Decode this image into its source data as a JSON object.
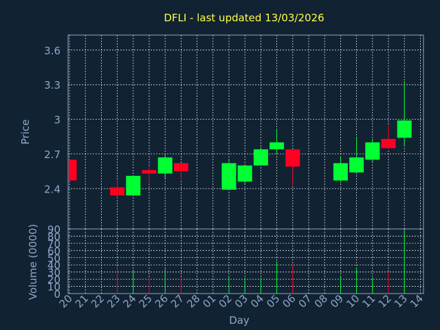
{
  "chart_data": {
    "type": "candlestick",
    "title": "DFLI - last updated 13/03/2026",
    "colors": {
      "background": "#112233",
      "up": "#00ff33",
      "down": "#ff0022",
      "title": "#ffff44",
      "axis": "#8fa8c8",
      "grid": "#ffffff"
    },
    "grid": true,
    "x_tick_labels": [
      "20",
      "21",
      "22",
      "23",
      "24",
      "25",
      "26",
      "27",
      "28",
      "01",
      "02",
      "03",
      "04",
      "05",
      "06",
      "07",
      "08",
      "09",
      "10",
      "11",
      "12",
      "13",
      "14"
    ],
    "xlabel": "Day",
    "price_panel": {
      "ylabel": "Price",
      "ylim": [
        2.05,
        3.73
      ],
      "ticks": [
        2.4,
        2.7,
        3.0,
        3.3,
        3.6
      ],
      "tick_labels": [
        "2.4",
        "2.7",
        "3",
        "3.3",
        "3.6"
      ]
    },
    "volume_panel": {
      "ylabel": "Volume (0000)",
      "ylim": [
        0,
        90
      ],
      "ticks": [
        0,
        10,
        20,
        30,
        40,
        50,
        60,
        70,
        80,
        90
      ],
      "tick_labels": [
        "0",
        "10",
        "20",
        "30",
        "40",
        "50",
        "60",
        "70",
        "80",
        "90"
      ]
    },
    "candles": [
      {
        "x": 0,
        "open": 2.65,
        "high": 2.65,
        "low": 2.47,
        "close": 2.47,
        "volume": 0
      },
      {
        "x": 3,
        "open": 2.41,
        "high": 2.48,
        "low": 2.32,
        "close": 2.34,
        "volume": 36
      },
      {
        "x": 4,
        "open": 2.34,
        "high": 2.51,
        "low": 2.34,
        "close": 2.51,
        "volume": 33
      },
      {
        "x": 5,
        "open": 2.56,
        "high": 2.6,
        "low": 2.44,
        "close": 2.53,
        "volume": 22
      },
      {
        "x": 6,
        "open": 2.53,
        "high": 2.7,
        "low": 2.49,
        "close": 2.67,
        "volume": 34
      },
      {
        "x": 7,
        "open": 2.62,
        "high": 2.62,
        "low": 2.48,
        "close": 2.55,
        "volume": 22
      },
      {
        "x": 10,
        "open": 2.39,
        "high": 2.65,
        "low": 2.39,
        "close": 2.62,
        "volume": 24
      },
      {
        "x": 11,
        "open": 2.46,
        "high": 2.6,
        "low": 2.44,
        "close": 2.6,
        "volume": 22
      },
      {
        "x": 12,
        "open": 2.6,
        "high": 2.76,
        "low": 2.6,
        "close": 2.74,
        "volume": 22
      },
      {
        "x": 13,
        "open": 2.74,
        "high": 2.91,
        "low": 2.7,
        "close": 2.8,
        "volume": 45
      },
      {
        "x": 14,
        "open": 2.74,
        "high": 2.74,
        "low": 2.43,
        "close": 2.59,
        "volume": 40
      },
      {
        "x": 17,
        "open": 2.47,
        "high": 2.68,
        "low": 2.45,
        "close": 2.62,
        "volume": 24
      },
      {
        "x": 18,
        "open": 2.54,
        "high": 2.85,
        "low": 2.54,
        "close": 2.67,
        "volume": 36
      },
      {
        "x": 19,
        "open": 2.65,
        "high": 2.83,
        "low": 2.63,
        "close": 2.8,
        "volume": 22
      },
      {
        "x": 20,
        "open": 2.83,
        "high": 2.95,
        "low": 2.74,
        "close": 2.75,
        "volume": 30
      },
      {
        "x": 21,
        "open": 2.84,
        "high": 3.33,
        "low": 2.77,
        "close": 2.99,
        "volume": 88
      }
    ]
  }
}
